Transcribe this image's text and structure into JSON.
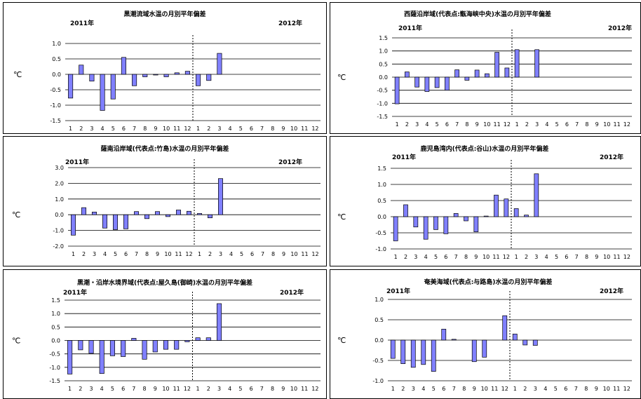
{
  "chart_data": [
    {
      "type": "bar",
      "title": "黒潮流域水温の月別平年偏差",
      "year_start_label": "2011年",
      "year_end_label": "2012年",
      "ylabel": "℃",
      "ylim": [
        -1.5,
        1.0
      ],
      "yticks": [
        "1.0",
        "0.5",
        "0.0",
        "-0.5",
        "-1.0",
        "-1.5"
      ],
      "ytick_values": [
        1.0,
        0.5,
        0.0,
        -0.5,
        -1.0,
        -1.5
      ],
      "categories": [
        "1",
        "2",
        "3",
        "4",
        "5",
        "6",
        "7",
        "8",
        "9",
        "10",
        "11",
        "12",
        "1",
        "2",
        "3",
        "4",
        "5",
        "6",
        "7",
        "8",
        "9",
        "10",
        "11",
        "12"
      ],
      "values": [
        -0.77,
        0.3,
        -0.22,
        -1.17,
        -0.8,
        0.55,
        -0.37,
        -0.08,
        -0.02,
        -0.08,
        0.05,
        0.1,
        -0.37,
        -0.2,
        0.68,
        null,
        null,
        null,
        null,
        null,
        null,
        null,
        null,
        null
      ],
      "bar_color": "#8080ff",
      "grid": true
    },
    {
      "type": "bar",
      "title": "西薩沿岸域(代表点:甑海峡中央)水温の月別平年偏差",
      "year_start_label": "2011年",
      "year_end_label": "2012年",
      "ylabel": "℃",
      "ylim": [
        -1.5,
        1.5
      ],
      "yticks": [
        "1.5",
        "1.0",
        "0.5",
        "0.0",
        "-0.5",
        "-1.0",
        "-1.5"
      ],
      "ytick_values": [
        1.5,
        1.0,
        0.5,
        0.0,
        -0.5,
        -1.0,
        -1.5
      ],
      "categories": [
        "1",
        "2",
        "3",
        "4",
        "5",
        "6",
        "7",
        "8",
        "9",
        "10",
        "11",
        "12",
        "1",
        "2",
        "3",
        "4",
        "5",
        "6",
        "7",
        "8",
        "9",
        "10",
        "11",
        "12"
      ],
      "values": [
        -1.02,
        0.2,
        -0.38,
        -0.55,
        -0.4,
        -0.5,
        0.28,
        -0.12,
        0.27,
        0.13,
        0.95,
        0.35,
        1.05,
        null,
        1.05,
        null,
        null,
        null,
        null,
        null,
        null,
        null,
        null,
        null
      ],
      "bar_color": "#8080ff",
      "grid": true
    },
    {
      "type": "bar",
      "title": "薩南沿岸域(代表点:竹島)水温の月別平年偏差",
      "year_start_label": "2011年",
      "year_end_label": "2012年",
      "ylabel": "℃",
      "ylim": [
        -2.0,
        3.0
      ],
      "yticks": [
        "3.0",
        "2.0",
        "1.0",
        "0.0",
        "-1.0",
        "-2.0"
      ],
      "ytick_values": [
        3.0,
        2.0,
        1.0,
        0.0,
        -1.0,
        -2.0
      ],
      "categories": [
        "1",
        "2",
        "3",
        "4",
        "5",
        "6",
        "7",
        "8",
        "9",
        "10",
        "11",
        "12",
        "1",
        "2",
        "3",
        "4",
        "5",
        "6",
        "7",
        "8",
        "9",
        "10",
        "11",
        "12"
      ],
      "values": [
        -1.3,
        0.45,
        0.17,
        -0.85,
        -0.95,
        -0.9,
        0.2,
        -0.25,
        0.2,
        -0.12,
        0.3,
        0.22,
        0.08,
        -0.2,
        2.3,
        null,
        null,
        null,
        null,
        null,
        null,
        null,
        null,
        null
      ],
      "bar_color": "#8080ff",
      "grid": true
    },
    {
      "type": "bar",
      "title": "鹿児島湾内(代表点:谷山)水温の月別平年偏差",
      "year_start_label": "2011年",
      "year_end_label": "2012年",
      "ylabel": "℃",
      "ylim": [
        -1.0,
        1.5
      ],
      "yticks": [
        "1.5",
        "1.0",
        "0.5",
        "0.0",
        "-0.5",
        "-1.0"
      ],
      "ytick_values": [
        1.5,
        1.0,
        0.5,
        0.0,
        -0.5,
        -1.0
      ],
      "categories": [
        "1",
        "2",
        "3",
        "4",
        "5",
        "6",
        "7",
        "8",
        "9",
        "10",
        "11",
        "12",
        "1",
        "2",
        "3",
        "4",
        "5",
        "6",
        "7",
        "8",
        "9",
        "10",
        "11",
        "12"
      ],
      "values": [
        -0.75,
        0.37,
        -0.32,
        -0.7,
        -0.4,
        -0.53,
        0.1,
        -0.13,
        -0.47,
        0.02,
        0.67,
        0.55,
        0.25,
        0.05,
        1.33,
        null,
        null,
        null,
        null,
        null,
        null,
        null,
        null,
        null
      ],
      "bar_color": "#8080ff",
      "grid": true
    },
    {
      "type": "bar",
      "title": "黒潮・沿岸水境界域(代表点:屋久島(御崎)水温の月別平年偏差",
      "year_start_label": "2011年",
      "year_end_label": "2012年",
      "ylabel": "℃",
      "ylim": [
        -1.5,
        1.5
      ],
      "yticks": [
        "1.5",
        "1.0",
        "0.5",
        "0.0",
        "-0.5",
        "-1.0",
        "-1.5"
      ],
      "ytick_values": [
        1.5,
        1.0,
        0.5,
        0.0,
        -0.5,
        -1.0,
        -1.5
      ],
      "categories": [
        "1",
        "2",
        "3",
        "4",
        "5",
        "6",
        "7",
        "8",
        "9",
        "10",
        "11",
        "12",
        "1",
        "2",
        "3",
        "4",
        "5",
        "6",
        "7",
        "8",
        "9",
        "10",
        "11",
        "12"
      ],
      "values": [
        -1.25,
        -0.35,
        -0.48,
        -1.23,
        -0.57,
        -0.6,
        0.08,
        -0.7,
        -0.43,
        -0.33,
        -0.33,
        -0.05,
        0.1,
        0.1,
        1.37,
        null,
        null,
        null,
        null,
        null,
        null,
        null,
        null,
        null
      ],
      "bar_color": "#8080ff",
      "grid": true
    },
    {
      "type": "bar",
      "title": "奄美海域(代表点:与路島)水温の月別平年偏差",
      "year_start_label": "2011年",
      "year_end_label": "2012年",
      "ylabel": "℃",
      "ylim": [
        -1.0,
        1.0
      ],
      "yticks": [
        "1.0",
        "0.5",
        "0.0",
        "-0.5",
        "-1.0"
      ],
      "ytick_values": [
        1.0,
        0.5,
        0.0,
        -0.5,
        -1.0
      ],
      "categories": [
        "1",
        "2",
        "3",
        "4",
        "5",
        "6",
        "7",
        "8",
        "9",
        "10",
        "11",
        "12",
        "1",
        "2",
        "3",
        "4",
        "5",
        "6",
        "7",
        "8",
        "9",
        "10",
        "11",
        "12"
      ],
      "values": [
        -0.45,
        -0.58,
        -0.67,
        -0.6,
        -0.77,
        0.27,
        0.02,
        null,
        -0.53,
        -0.42,
        null,
        0.6,
        0.15,
        -0.12,
        -0.13,
        null,
        null,
        null,
        null,
        null,
        null,
        null,
        null,
        null
      ],
      "bar_color": "#8080ff",
      "grid": true
    }
  ]
}
